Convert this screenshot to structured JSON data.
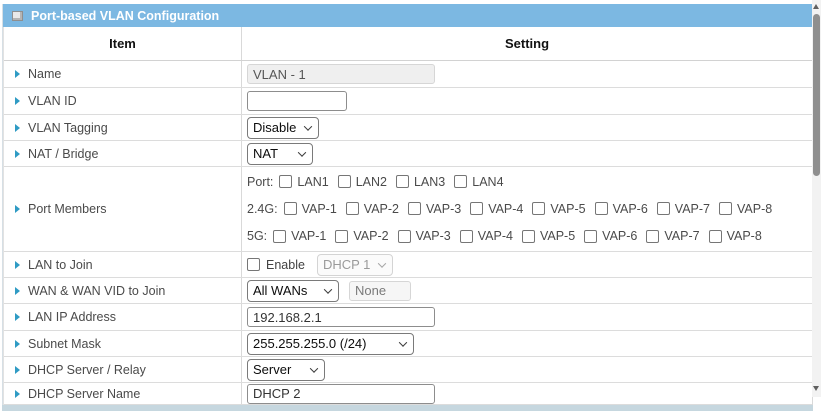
{
  "panel": {
    "title": "Port-based VLAN Configuration"
  },
  "table": {
    "header_item": "Item",
    "header_setting": "Setting"
  },
  "rows": {
    "name": {
      "label": "Name",
      "value": "VLAN - 1"
    },
    "vlan_id": {
      "label": "VLAN ID",
      "value": ""
    },
    "vlan_tagging": {
      "label": "VLAN Tagging",
      "selected": "Disable"
    },
    "nat_bridge": {
      "label": "NAT / Bridge",
      "selected": "NAT"
    },
    "port_members": {
      "label": "Port Members",
      "groups": [
        {
          "prefix": "Port:",
          "options": [
            "LAN1",
            "LAN2",
            "LAN3",
            "LAN4"
          ]
        },
        {
          "prefix": "2.4G:",
          "options": [
            "VAP-1",
            "VAP-2",
            "VAP-3",
            "VAP-4",
            "VAP-5",
            "VAP-6",
            "VAP-7",
            "VAP-8"
          ]
        },
        {
          "prefix": "5G:",
          "options": [
            "VAP-1",
            "VAP-2",
            "VAP-3",
            "VAP-4",
            "VAP-5",
            "VAP-6",
            "VAP-7",
            "VAP-8"
          ]
        }
      ],
      "all_unchecked": true
    },
    "lan_to_join": {
      "label": "LAN to Join",
      "enable_label": "Enable",
      "enabled": false,
      "selected": "DHCP 1",
      "select_disabled": true
    },
    "wan_join": {
      "label": "WAN & WAN VID to Join",
      "selected": "All WANs",
      "vid_value": "None",
      "vid_disabled": true
    },
    "lan_ip": {
      "label": "LAN IP Address",
      "value": "192.168.2.1"
    },
    "subnet_mask": {
      "label": "Subnet Mask",
      "selected": "255.255.255.0 (/24)"
    },
    "dhcp_mode": {
      "label": "DHCP Server / Relay",
      "selected": "Server"
    },
    "dhcp_name": {
      "label": "DHCP Server Name",
      "value": "DHCP 2"
    }
  },
  "colors": {
    "titlebar_blue": "#7cb8e2",
    "bullet_teal": "#2f9bc4",
    "bottom_frame": "#c6d7df",
    "row_border": "#dcdcdc"
  }
}
